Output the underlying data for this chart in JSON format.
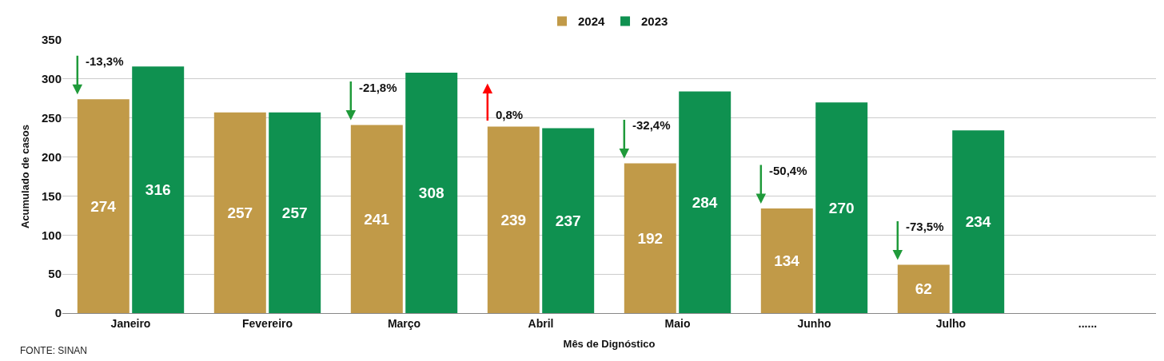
{
  "chart_data": {
    "type": "bar",
    "xlabel": "Mês de Dignóstico",
    "ylabel": "Acumulado de casos",
    "categories": [
      "Janeiro",
      "Fevereiro",
      "Março",
      "Abril",
      "Maio",
      "Junho",
      "Julho",
      "......"
    ],
    "series": [
      {
        "name": "2024",
        "color": "#c19a48",
        "values": [
          274,
          257,
          241,
          239,
          192,
          134,
          62,
          null
        ]
      },
      {
        "name": "2023",
        "color": "#0f9150",
        "values": [
          316,
          257,
          308,
          237,
          284,
          270,
          234,
          null
        ]
      }
    ],
    "ylim": [
      0,
      350
    ],
    "yticks": [
      0,
      50,
      100,
      150,
      200,
      250,
      300,
      350
    ],
    "grid": "y",
    "legend": "top",
    "data_labels": true,
    "annotations": [
      {
        "text": "-13,3%",
        "x": "Janeiro",
        "y": 274
      },
      {
        "text": "-21,8%",
        "x": "Março",
        "y": 241
      },
      {
        "text": "0,8%",
        "x": "Abril",
        "y": 239
      },
      {
        "text": "-32,4%",
        "x": "Maio",
        "y": 192
      },
      {
        "text": "-50,4%",
        "x": "Junho",
        "y": 134
      },
      {
        "text": "-73,5%",
        "x": "Julho",
        "y": 62
      },
      "FONTE: SINAN"
    ]
  }
}
